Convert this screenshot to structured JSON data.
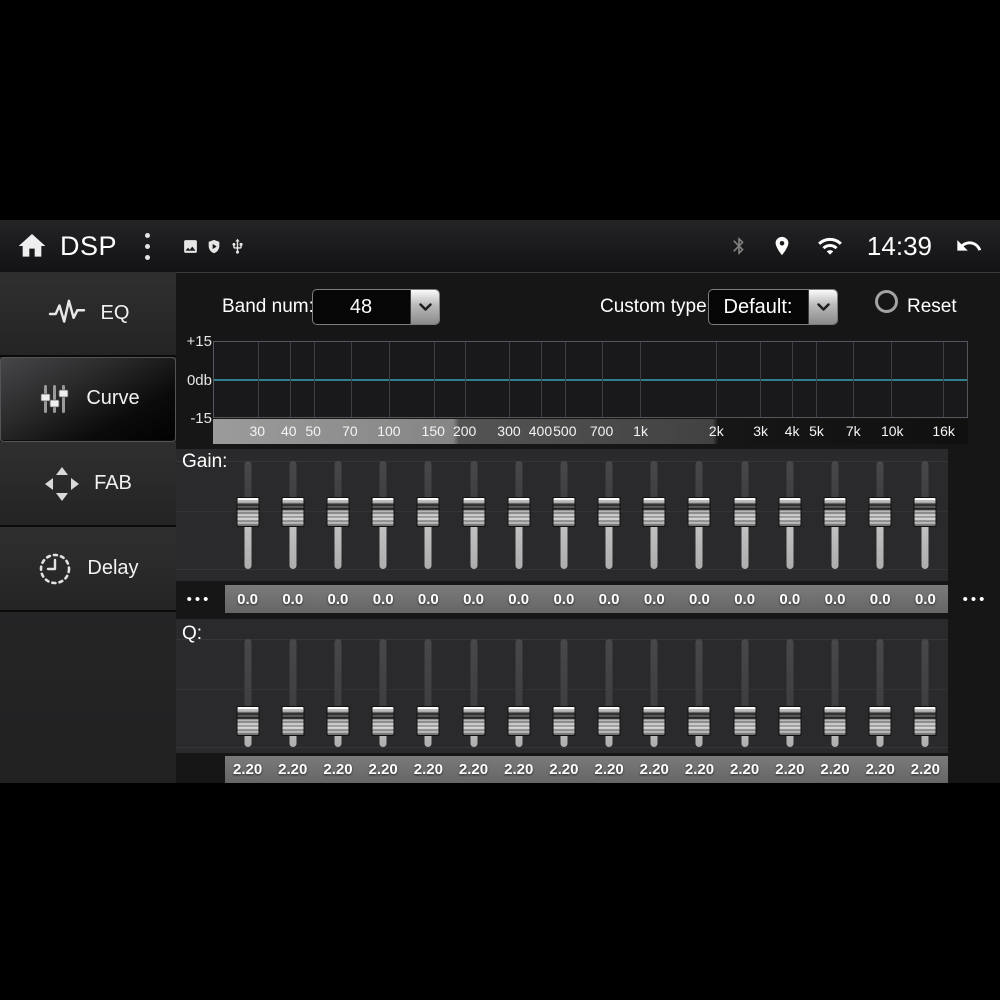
{
  "topbar": {
    "title": "DSP",
    "time": "14:39",
    "icons_left": [
      "home-icon",
      "overflow-menu-icon",
      "gallery-icon",
      "shield-play-icon",
      "usb-icon"
    ],
    "icons_right": [
      "bluetooth-icon",
      "location-icon",
      "wifi-icon",
      "back-icon"
    ]
  },
  "sidebar": {
    "items": [
      {
        "label": "EQ",
        "icon": "eq-waveform-icon",
        "selected": false
      },
      {
        "label": "Curve",
        "icon": "mixer-sliders-icon",
        "selected": true
      },
      {
        "label": "FAB",
        "icon": "fab-arrows-icon",
        "selected": false
      },
      {
        "label": "Delay",
        "icon": "clock-icon",
        "selected": false
      }
    ]
  },
  "controls": {
    "band_num_label": "Band num:",
    "band_num_value": "48",
    "custom_type_label": "Custom type:",
    "custom_type_value": "Default:",
    "reset_label": "Reset",
    "reset_selected": false
  },
  "graph": {
    "y_labels": [
      "+15",
      "0db",
      "-15"
    ],
    "range": {
      "min_hz": 20,
      "max_hz": 20000,
      "min_db": -15,
      "max_db": 15
    },
    "curve_db": 0,
    "curve_color": "#2f808d",
    "ticks": [
      {
        "label": "30",
        "hz": 30
      },
      {
        "label": "40",
        "hz": 40
      },
      {
        "label": "50",
        "hz": 50
      },
      {
        "label": "70",
        "hz": 70
      },
      {
        "label": "100",
        "hz": 100
      },
      {
        "label": "150",
        "hz": 150
      },
      {
        "label": "200",
        "hz": 200
      },
      {
        "label": "300",
        "hz": 300
      },
      {
        "label": "400",
        "hz": 400
      },
      {
        "label": "500",
        "hz": 500
      },
      {
        "label": "700",
        "hz": 700
      },
      {
        "label": "1k",
        "hz": 1000
      },
      {
        "label": "2k",
        "hz": 2000
      },
      {
        "label": "3k",
        "hz": 3000
      },
      {
        "label": "4k",
        "hz": 4000
      },
      {
        "label": "5k",
        "hz": 5000
      },
      {
        "label": "7k",
        "hz": 7000
      },
      {
        "label": "10k",
        "hz": 10000
      },
      {
        "label": "16k",
        "hz": 16000
      }
    ]
  },
  "gain": {
    "label": "Gain:",
    "overflow_dots": "•••",
    "values": [
      "0.0",
      "0.0",
      "0.0",
      "0.0",
      "0.0",
      "0.0",
      "0.0",
      "0.0",
      "0.0",
      "0.0",
      "0.0",
      "0.0",
      "0.0",
      "0.0",
      "0.0",
      "0.0"
    ]
  },
  "q": {
    "label": "Q:",
    "values": [
      "2.20",
      "2.20",
      "2.20",
      "2.20",
      "2.20",
      "2.20",
      "2.20",
      "2.20",
      "2.20",
      "2.20",
      "2.20",
      "2.20",
      "2.20",
      "2.20",
      "2.20",
      "2.20"
    ]
  },
  "colors": {
    "accent_curve": "#2f808d",
    "panel_bg": "#2a2a2c",
    "value_strip_bg": "#6f6f6f"
  }
}
